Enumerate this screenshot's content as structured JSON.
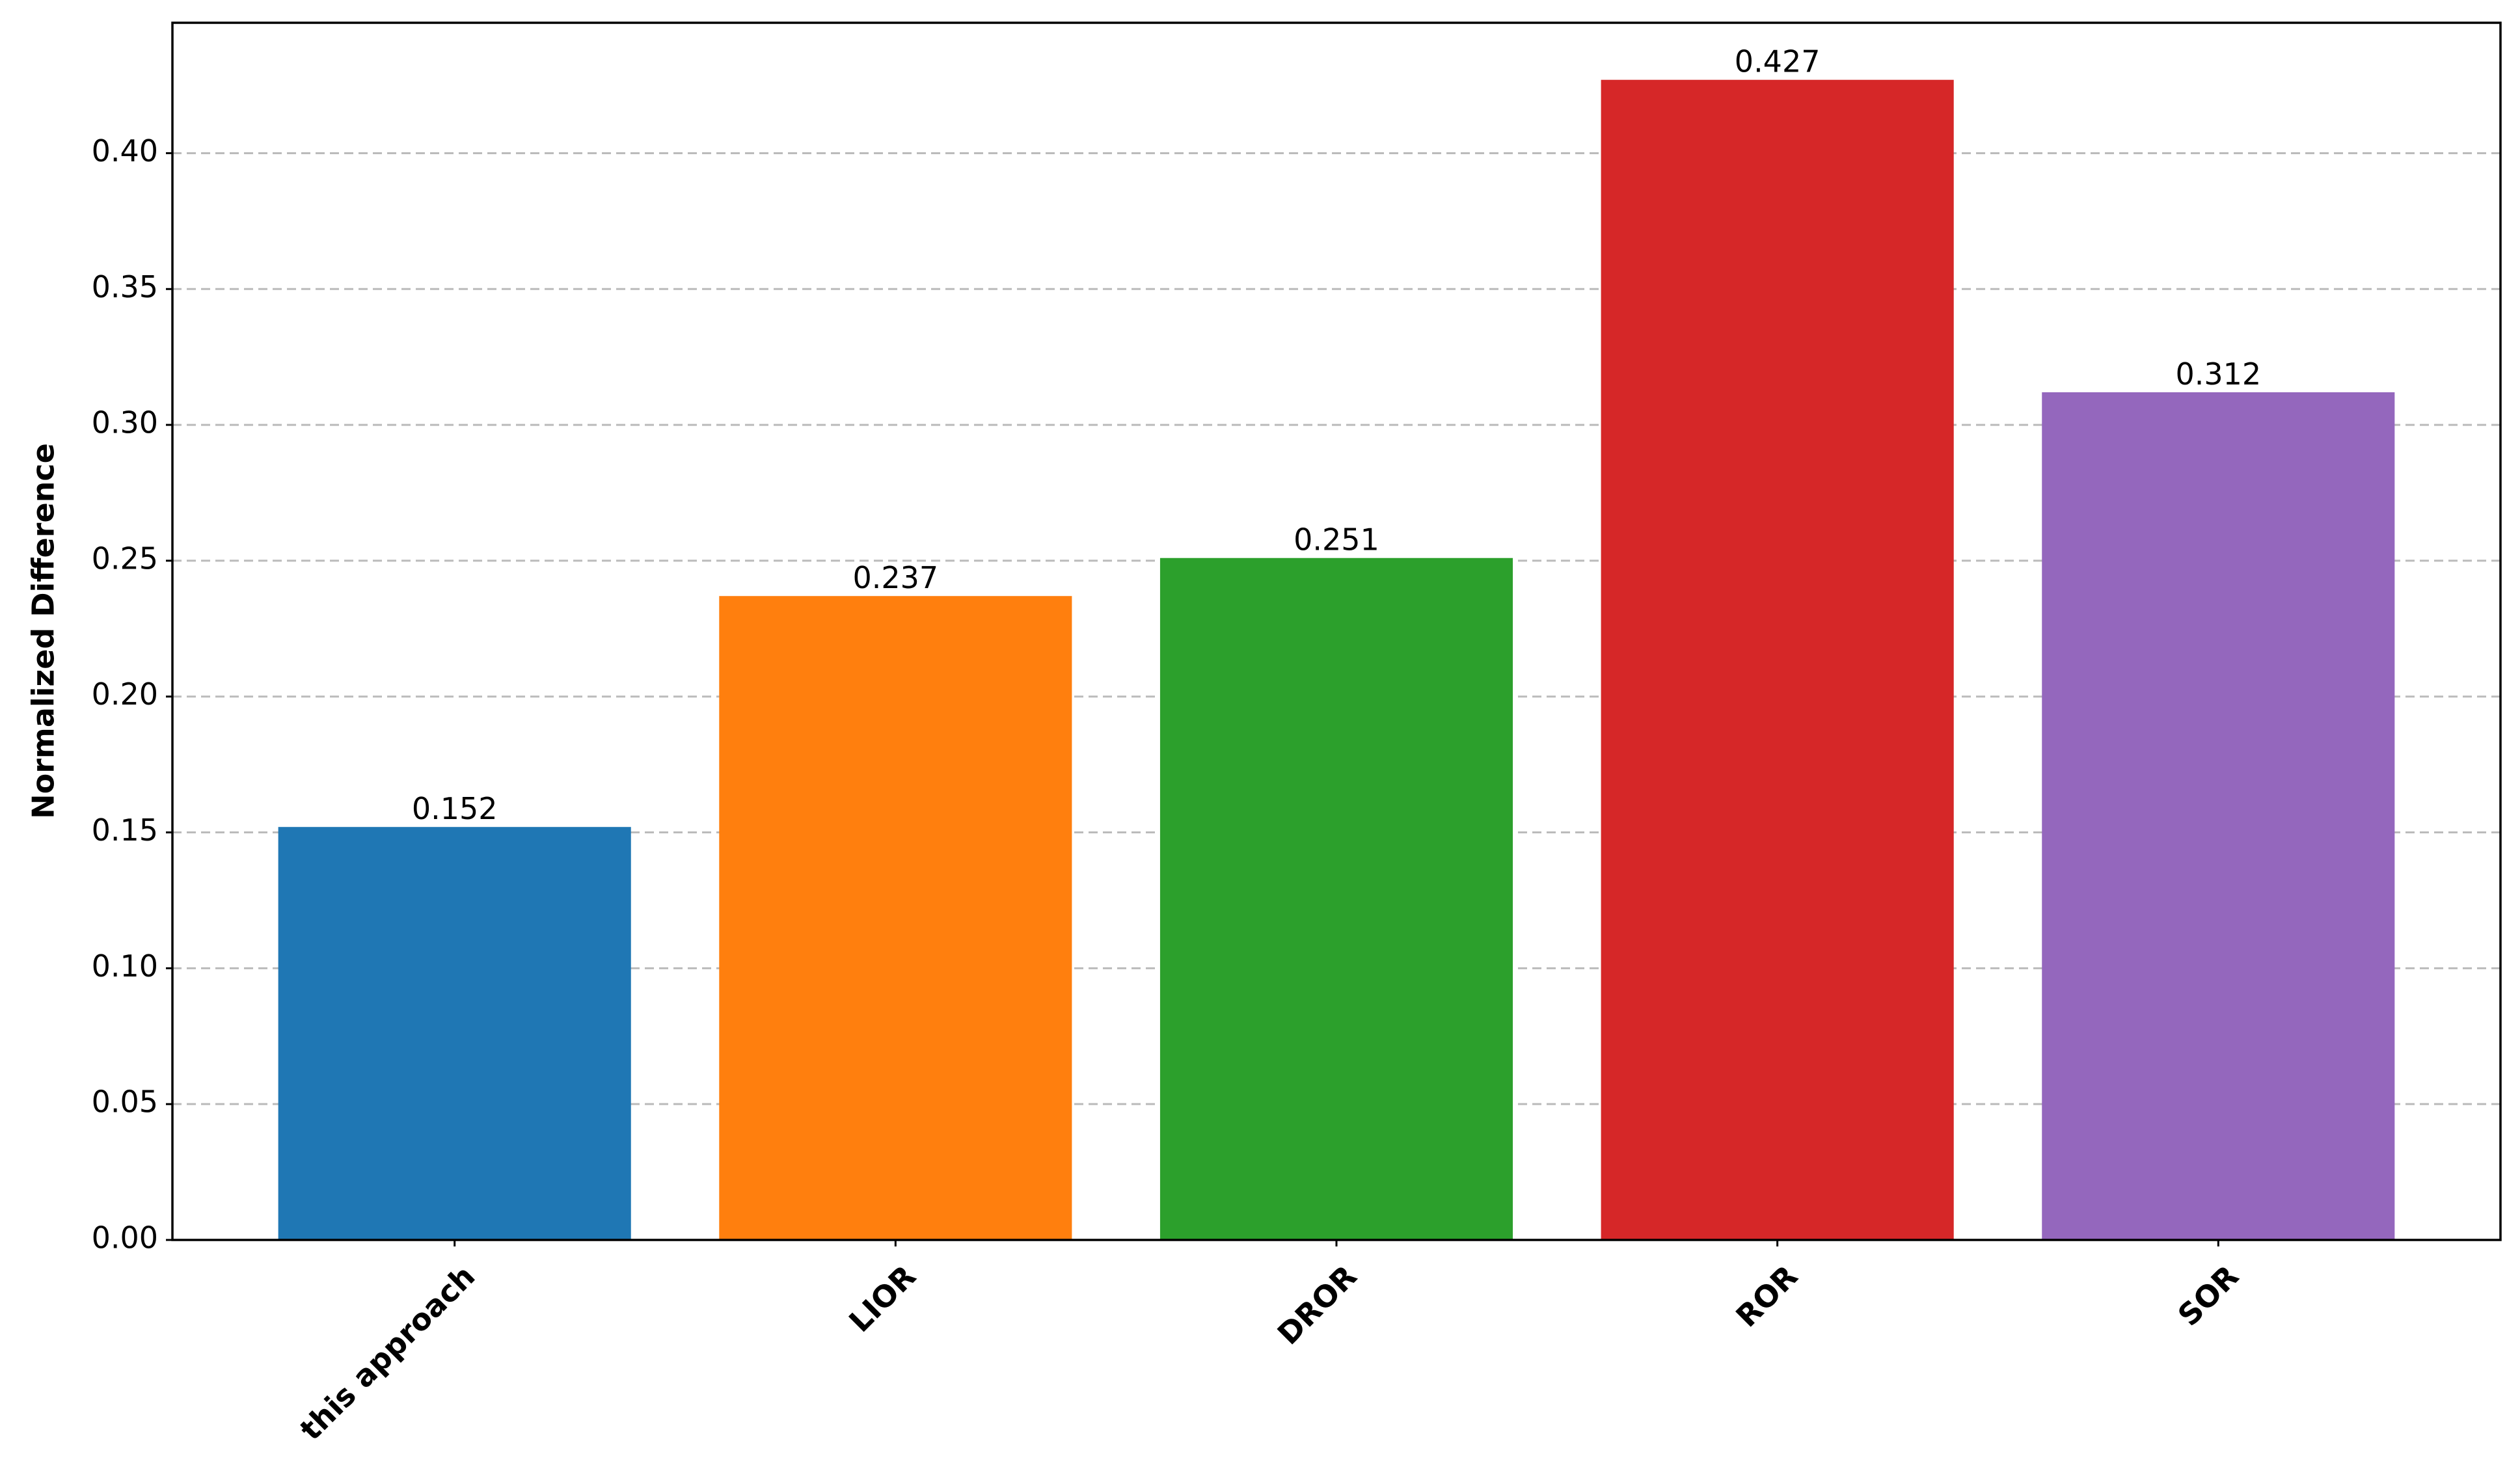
{
  "chart_data": {
    "type": "bar",
    "ylabel": "Normalized Difference",
    "categories": [
      "this approach",
      "LIOR",
      "DROR",
      "ROR",
      "SOR"
    ],
    "values": [
      0.152,
      0.237,
      0.251,
      0.427,
      0.312
    ],
    "colors": [
      "#1f77b4",
      "#ff7f0e",
      "#2ca02c",
      "#d62728",
      "#9467bd"
    ],
    "ylim": [
      0,
      0.448
    ],
    "yticks": [
      {
        "value": 0,
        "label": "0.00"
      },
      {
        "value": 0.05,
        "label": "0.05"
      },
      {
        "value": 0.1,
        "label": "0.10"
      },
      {
        "value": 0.15,
        "label": "0.15"
      },
      {
        "value": 0.2,
        "label": "0.20"
      },
      {
        "value": 0.25,
        "label": "0.25"
      },
      {
        "value": 0.3,
        "label": "0.30"
      },
      {
        "value": 0.35,
        "label": "0.35"
      },
      {
        "value": 0.4,
        "label": "0.40"
      }
    ],
    "grid": true
  }
}
